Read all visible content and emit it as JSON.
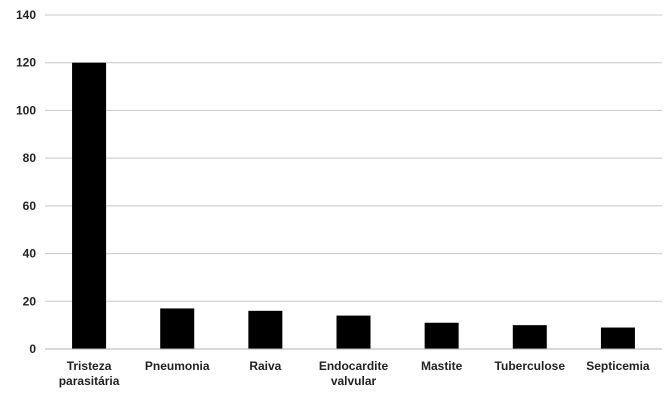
{
  "chart_data": {
    "type": "bar",
    "title": "",
    "xlabel": "",
    "ylabel": "",
    "categories": [
      [
        "Tristeza",
        "parasitária"
      ],
      [
        "Pneumonia"
      ],
      [
        "Raiva"
      ],
      [
        "Endocardite",
        "valvular"
      ],
      [
        "Mastite"
      ],
      [
        "Tuberculose"
      ],
      [
        "Septicemia"
      ]
    ],
    "values": [
      120,
      17,
      16,
      14,
      11,
      10,
      9
    ],
    "ylim": [
      0,
      140
    ],
    "yticks": [
      0,
      20,
      40,
      60,
      80,
      100,
      120,
      140
    ],
    "grid": true,
    "legend": "none",
    "colors": {
      "bar": "#000000",
      "grid": "#c8c8c8",
      "axis": "#b0b0b0"
    }
  }
}
